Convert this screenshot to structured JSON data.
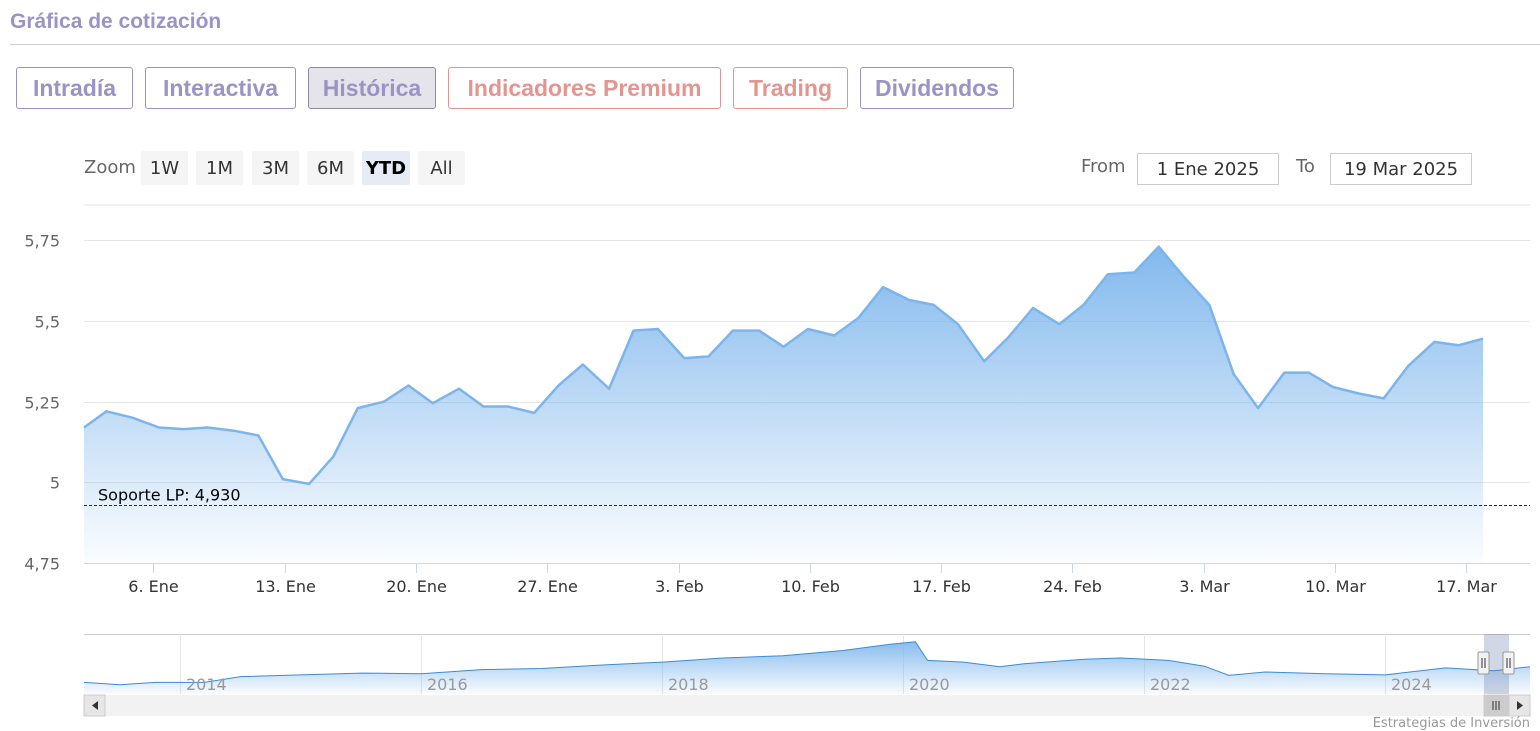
{
  "header": {
    "title": "Gráfica de cotización"
  },
  "tabs": [
    {
      "label": "Intradía"
    },
    {
      "label": "Interactiva"
    },
    {
      "label": "Histórica"
    },
    {
      "label": "Indicadores Premium"
    },
    {
      "label": "Trading"
    },
    {
      "label": "Dividendos"
    }
  ],
  "active_tab": "Histórica",
  "zoom": {
    "label": "Zoom",
    "buttons": [
      "1W",
      "1M",
      "3M",
      "6M",
      "YTD",
      "All"
    ],
    "selected": "YTD"
  },
  "range": {
    "from_label": "From",
    "from_value": "1 Ene 2025",
    "to_label": "To",
    "to_value": "19 Mar 2025"
  },
  "colors": {
    "accent": "#9b93c5",
    "premium": "#e3958f",
    "series_line": "#7cb5ec",
    "support_line": "#8b0000"
  },
  "chart_data": {
    "type": "area",
    "y_ticks": [
      "5,75",
      "5,5",
      "5,25",
      "5",
      "4,75"
    ],
    "y_tick_values": [
      5.75,
      5.5,
      5.25,
      5.0,
      4.75
    ],
    "ylim": [
      4.75,
      5.85
    ],
    "x_tick_labels": [
      "6. Ene",
      "13. Ene",
      "20. Ene",
      "27. Ene",
      "3. Feb",
      "10. Feb",
      "17. Feb",
      "24. Feb",
      "3. Mar",
      "10. Mar",
      "17. Mar"
    ],
    "x_tick_days": [
      5,
      12,
      19,
      26,
      33,
      40,
      47,
      54,
      61,
      68,
      75
    ],
    "xlim": [
      1.3,
      78.4
    ],
    "x_unit": "days since 31 Dic 2024",
    "series": [
      {
        "points": [
          [
            1.3,
            5.17
          ],
          [
            2.5,
            5.22
          ],
          [
            3.9,
            5.2
          ],
          [
            5.3,
            5.17
          ],
          [
            6.6,
            5.165
          ],
          [
            7.9,
            5.17
          ],
          [
            9.3,
            5.16
          ],
          [
            10.6,
            5.145
          ],
          [
            11.9,
            5.01
          ],
          [
            13.3,
            4.995
          ],
          [
            14.6,
            5.08
          ],
          [
            15.9,
            5.23
          ],
          [
            17.3,
            5.25
          ],
          [
            18.6,
            5.3
          ],
          [
            19.9,
            5.245
          ],
          [
            21.3,
            5.29
          ],
          [
            22.6,
            5.235
          ],
          [
            23.9,
            5.235
          ],
          [
            25.3,
            5.215
          ],
          [
            26.6,
            5.3
          ],
          [
            27.9,
            5.365
          ],
          [
            29.3,
            5.29
          ],
          [
            30.6,
            5.47
          ],
          [
            31.9,
            5.475
          ],
          [
            33.3,
            5.385
          ],
          [
            34.6,
            5.39
          ],
          [
            35.9,
            5.47
          ],
          [
            37.3,
            5.47
          ],
          [
            38.6,
            5.42
          ],
          [
            39.9,
            5.475
          ],
          [
            41.3,
            5.455
          ],
          [
            42.6,
            5.51
          ],
          [
            43.9,
            5.605
          ],
          [
            45.3,
            5.565
          ],
          [
            46.6,
            5.55
          ],
          [
            47.9,
            5.49
          ],
          [
            49.3,
            5.375
          ],
          [
            50.6,
            5.45
          ],
          [
            51.9,
            5.54
          ],
          [
            53.3,
            5.49
          ],
          [
            54.6,
            5.55
          ],
          [
            55.9,
            5.645
          ],
          [
            57.3,
            5.65
          ],
          [
            58.6,
            5.73
          ],
          [
            59.9,
            5.64
          ],
          [
            61.3,
            5.55
          ],
          [
            62.6,
            5.335
          ],
          [
            63.9,
            5.23
          ],
          [
            65.3,
            5.34
          ],
          [
            66.6,
            5.34
          ],
          [
            67.9,
            5.295
          ],
          [
            69.3,
            5.275
          ],
          [
            70.6,
            5.26
          ],
          [
            71.9,
            5.36
          ],
          [
            73.3,
            5.435
          ],
          [
            74.6,
            5.425
          ],
          [
            75.9,
            5.445
          ]
        ]
      }
    ],
    "support": {
      "label": "Soporte LP: 4,930",
      "value": 4.93
    },
    "grid": true,
    "navigator": {
      "year_labels": [
        "2014",
        "2016",
        "2018",
        "2020",
        "2022",
        "2024"
      ],
      "overview": [
        [
          2013.2,
          0.2
        ],
        [
          2013.5,
          0.16
        ],
        [
          2013.8,
          0.2
        ],
        [
          2014.2,
          0.2
        ],
        [
          2014.5,
          0.3
        ],
        [
          2015.0,
          0.33
        ],
        [
          2015.5,
          0.36
        ],
        [
          2016.0,
          0.35
        ],
        [
          2016.5,
          0.42
        ],
        [
          2017.0,
          0.44
        ],
        [
          2017.5,
          0.5
        ],
        [
          2018.0,
          0.55
        ],
        [
          2018.5,
          0.62
        ],
        [
          2019.0,
          0.66
        ],
        [
          2019.5,
          0.75
        ],
        [
          2019.9,
          0.86
        ],
        [
          2020.1,
          0.9
        ],
        [
          2020.2,
          0.58
        ],
        [
          2020.5,
          0.55
        ],
        [
          2020.8,
          0.47
        ],
        [
          2021.0,
          0.52
        ],
        [
          2021.5,
          0.6
        ],
        [
          2021.8,
          0.62
        ],
        [
          2022.2,
          0.58
        ],
        [
          2022.5,
          0.48
        ],
        [
          2022.7,
          0.32
        ],
        [
          2023.0,
          0.38
        ],
        [
          2023.5,
          0.35
        ],
        [
          2024.0,
          0.33
        ],
        [
          2024.5,
          0.45
        ],
        [
          2024.9,
          0.4
        ],
        [
          2025.2,
          0.47
        ]
      ],
      "xlim": [
        2013.2,
        2025.2
      ]
    }
  },
  "footer": {
    "credit": "Estrategias de Inversión"
  }
}
